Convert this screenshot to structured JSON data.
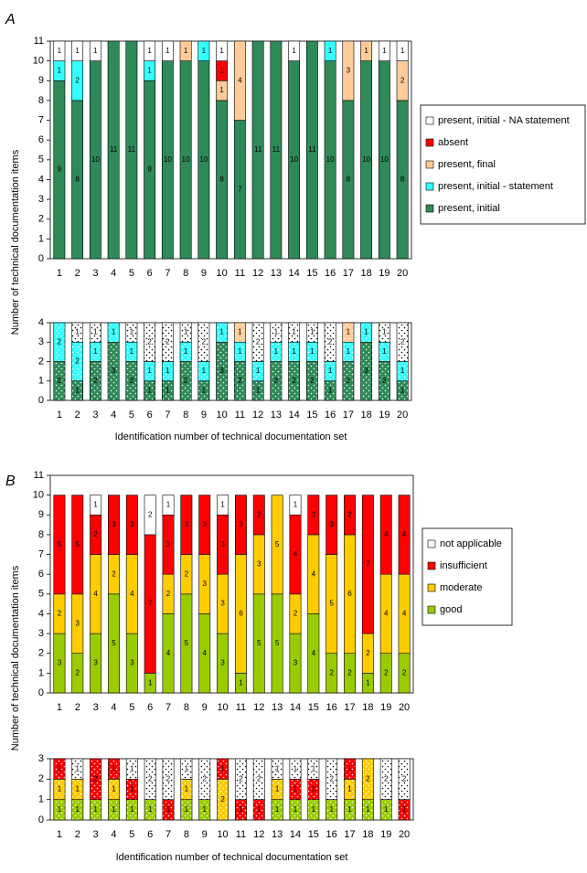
{
  "chart_data": [
    {
      "type": "bar",
      "stacked": true,
      "panel_label": "A",
      "ylabel": "Number of technical documentation items",
      "categories": [
        "1",
        "2",
        "3",
        "4",
        "5",
        "6",
        "7",
        "8",
        "9",
        "10",
        "11",
        "12",
        "13",
        "14",
        "15",
        "16",
        "17",
        "18",
        "19",
        "20"
      ],
      "ylim": [
        0,
        11
      ],
      "yticks": [
        0,
        1,
        2,
        3,
        4,
        5,
        6,
        7,
        8,
        9,
        10,
        11
      ],
      "legend": "right",
      "series": [
        {
          "name": "present, initial",
          "color": "#2e8b57",
          "values": [
            9,
            8,
            10,
            11,
            11,
            9,
            10,
            10,
            10,
            8,
            7,
            11,
            11,
            10,
            11,
            10,
            8,
            10,
            10,
            8
          ]
        },
        {
          "name": "present, initial - statement",
          "color": "#33ffff",
          "values": [
            1,
            2,
            null,
            null,
            null,
            1,
            null,
            null,
            1,
            null,
            null,
            null,
            null,
            null,
            null,
            1,
            null,
            null,
            null,
            null
          ]
        },
        {
          "name": "present, final",
          "color": "#ffcc99",
          "values": [
            null,
            null,
            null,
            null,
            null,
            null,
            null,
            1,
            null,
            1,
            4,
            null,
            null,
            null,
            null,
            null,
            3,
            1,
            null,
            2
          ]
        },
        {
          "name": "absent",
          "color": "#ff0000",
          "values": [
            null,
            null,
            null,
            null,
            null,
            null,
            null,
            null,
            null,
            1,
            null,
            null,
            null,
            null,
            null,
            null,
            null,
            null,
            null,
            null
          ]
        },
        {
          "name": "present, initial - NA statement",
          "color": "#ffffff",
          "values": [
            1,
            1,
            1,
            null,
            null,
            1,
            1,
            null,
            null,
            1,
            null,
            null,
            null,
            1,
            null,
            null,
            null,
            null,
            1,
            1
          ]
        }
      ]
    },
    {
      "type": "bar",
      "stacked": true,
      "pattern": "dots",
      "xlabel": "Identification number of technical documentation set",
      "categories": [
        "1",
        "2",
        "3",
        "4",
        "5",
        "6",
        "7",
        "8",
        "9",
        "10",
        "11",
        "12",
        "13",
        "14",
        "15",
        "16",
        "17",
        "18",
        "19",
        "20"
      ],
      "ylim": [
        0,
        4
      ],
      "yticks": [
        0,
        1,
        2,
        3,
        4
      ],
      "series": [
        {
          "color": "#2e8b57",
          "values": [
            2,
            1,
            2,
            3,
            2,
            1,
            1,
            2,
            1,
            3,
            2,
            1,
            2,
            2,
            2,
            1,
            2,
            3,
            2,
            1
          ]
        },
        {
          "color": "#33ffff",
          "values": [
            2,
            2,
            1,
            1,
            1,
            1,
            1,
            1,
            1,
            1,
            1,
            1,
            1,
            1,
            1,
            1,
            1,
            1,
            1,
            1
          ]
        },
        {
          "color": "#ffcc99",
          "values": [
            null,
            null,
            null,
            null,
            null,
            null,
            null,
            null,
            null,
            null,
            1,
            null,
            null,
            null,
            null,
            null,
            1,
            null,
            null,
            null
          ]
        },
        {
          "color": "#ffffff",
          "values": [
            null,
            1,
            1,
            null,
            1,
            2,
            2,
            1,
            2,
            null,
            null,
            2,
            1,
            1,
            1,
            2,
            null,
            null,
            1,
            2
          ]
        }
      ]
    },
    {
      "type": "bar",
      "stacked": true,
      "panel_label": "B",
      "ylabel": "Number of technical documentation items",
      "categories": [
        "1",
        "2",
        "3",
        "4",
        "5",
        "6",
        "7",
        "8",
        "9",
        "10",
        "11",
        "12",
        "13",
        "14",
        "15",
        "16",
        "17",
        "18",
        "19",
        "20"
      ],
      "ylim": [
        0,
        11
      ],
      "yticks": [
        0,
        1,
        2,
        3,
        4,
        5,
        6,
        7,
        8,
        9,
        10,
        11
      ],
      "legend": "right",
      "series": [
        {
          "name": "good",
          "color": "#99cc00",
          "values": [
            3,
            2,
            3,
            5,
            3,
            1,
            4,
            5,
            4,
            3,
            1,
            5,
            5,
            3,
            4,
            2,
            2,
            1,
            2,
            2
          ]
        },
        {
          "name": "moderate",
          "color": "#ffcc00",
          "values": [
            2,
            3,
            4,
            2,
            4,
            null,
            2,
            2,
            3,
            3,
            6,
            3,
            5,
            2,
            4,
            5,
            6,
            2,
            4,
            4
          ]
        },
        {
          "name": "insufficient",
          "color": "#ff0000",
          "values": [
            5,
            5,
            2,
            3,
            3,
            7,
            3,
            3,
            3,
            3,
            3,
            2,
            null,
            4,
            2,
            3,
            2,
            7,
            4,
            4
          ]
        },
        {
          "name": "not applicable",
          "color": "#ffffff",
          "values": [
            null,
            null,
            1,
            null,
            null,
            2,
            1,
            null,
            null,
            1,
            null,
            null,
            null,
            1,
            null,
            null,
            null,
            null,
            null,
            null
          ]
        }
      ]
    },
    {
      "type": "bar",
      "stacked": true,
      "pattern": "dots",
      "xlabel": "Identification number of technical documentation set",
      "categories": [
        "1",
        "2",
        "3",
        "4",
        "5",
        "6",
        "7",
        "8",
        "9",
        "10",
        "11",
        "12",
        "13",
        "14",
        "15",
        "16",
        "17",
        "18",
        "19",
        "20"
      ],
      "ylim": [
        0,
        3
      ],
      "yticks": [
        0,
        1,
        2,
        3
      ],
      "series": [
        {
          "color": "#99cc00",
          "values": [
            1,
            1,
            1,
            1,
            1,
            1,
            null,
            1,
            1,
            null,
            null,
            null,
            1,
            1,
            1,
            1,
            1,
            1,
            1,
            null
          ]
        },
        {
          "color": "#ffcc00",
          "values": [
            1,
            1,
            null,
            1,
            null,
            null,
            null,
            1,
            null,
            2,
            null,
            null,
            1,
            null,
            null,
            null,
            1,
            2,
            null,
            null
          ]
        },
        {
          "color": "#ff0000",
          "values": [
            1,
            null,
            2,
            1,
            1,
            null,
            1,
            null,
            null,
            1,
            1,
            1,
            null,
            1,
            1,
            null,
            1,
            null,
            null,
            1
          ]
        },
        {
          "color": "#ffffff",
          "values": [
            null,
            1,
            null,
            null,
            1,
            2,
            2,
            1,
            2,
            null,
            2,
            2,
            1,
            1,
            1,
            2,
            null,
            null,
            2,
            2
          ]
        }
      ]
    }
  ]
}
